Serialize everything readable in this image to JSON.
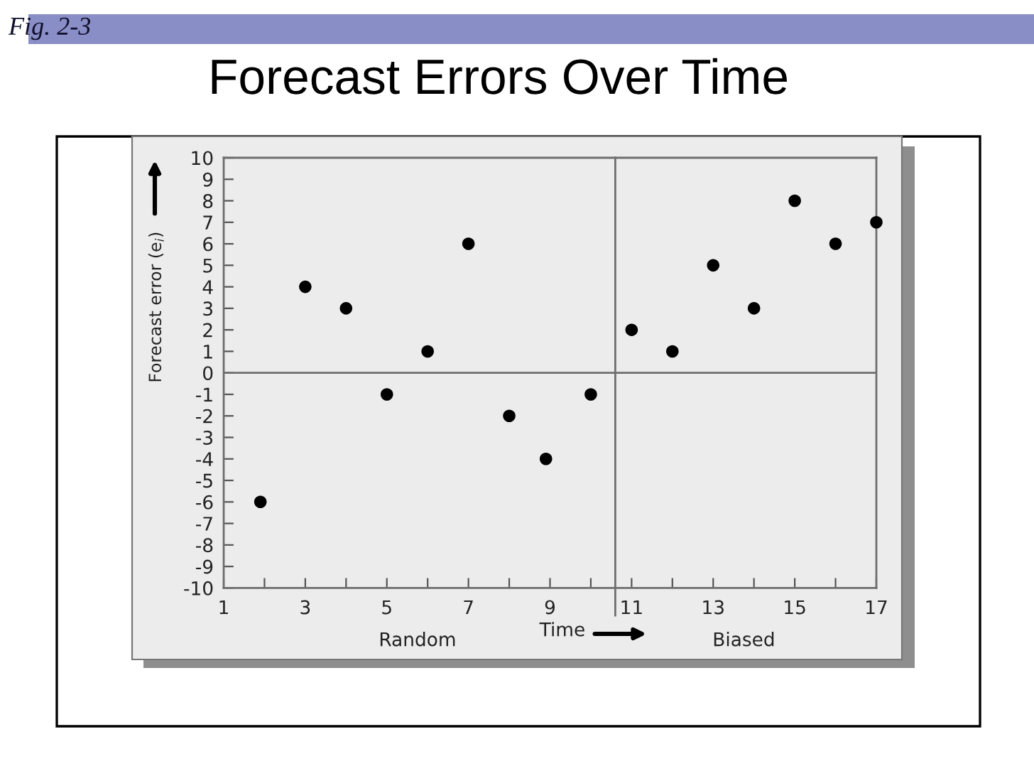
{
  "chart_data": {
    "type": "scatter",
    "title": "Forecast Errors Over Time",
    "xlabel": "Time",
    "ylabel": "Forecast error (e$_{i}$)",
    "annotations": [
      "Fig. 2-3",
      "Random",
      "Biased"
    ],
    "x": [
      1.9,
      3,
      4,
      5,
      6,
      7,
      8,
      8.9,
      10,
      11,
      12,
      13,
      14,
      15,
      16,
      17
    ],
    "series": [
      {
        "color": "#000000",
        "values": [
          -6,
          4,
          3,
          -1,
          1,
          6,
          -2,
          -4,
          -1,
          2,
          1,
          5,
          3,
          8,
          6,
          7
        ]
      }
    ],
    "xlim": [
      1,
      17
    ],
    "ylim": [
      -10,
      10
    ],
    "xticks": [
      1,
      {
        "value": 2,
        "label": null
      },
      3,
      {
        "value": 4,
        "label": null
      },
      5,
      {
        "value": 6,
        "label": null
      },
      7,
      {
        "value": 8,
        "label": null
      },
      9,
      {
        "value": 10,
        "label": null
      },
      11,
      {
        "value": 12,
        "label": null
      },
      13,
      {
        "value": 14,
        "label": null
      },
      15,
      {
        "value": 16,
        "label": null
      },
      17
    ],
    "yticks": [
      -10,
      -9,
      -8,
      -7,
      -6,
      -5,
      -4,
      -3,
      -2,
      -1,
      0,
      1,
      2,
      3,
      4,
      5,
      6,
      7,
      8,
      9,
      10
    ],
    "ref_lines": [
      {
        "axis": "x",
        "value": 10.6,
        "color": "#6e6e6e"
      },
      {
        "axis": "y",
        "value": 0,
        "color": "#6e6e6e"
      }
    ],
    "grid": false,
    "legend": false,
    "marker": "circle"
  }
}
